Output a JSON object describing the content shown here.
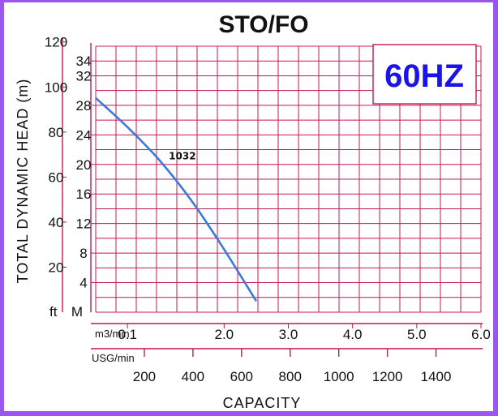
{
  "chart_data": {
    "type": "line",
    "title": "STO/FO",
    "badge": "60HZ",
    "ylabel": "TOTAL DYNAMIC HEAD (m)",
    "xlabel": "CAPACITY",
    "y_ft_unit": "ft",
    "y_m_unit": "M",
    "y_ft_ticks": [
      "120",
      "100",
      "80",
      "60",
      "40",
      "20"
    ],
    "y_m_ticks": [
      "34",
      "32",
      "28",
      "24",
      "20",
      "16",
      "12",
      "8",
      "4"
    ],
    "x_m3_unit": "m3/min",
    "x_m3_ticks": [
      "0.1",
      "2.0",
      "3.0",
      "4.0",
      "5.0",
      "6.0"
    ],
    "x_usg_unit": "USG/min",
    "x_usg_ticks": [
      "200",
      "400",
      "600",
      "800",
      "1000",
      "1200",
      "1400"
    ],
    "ylim_m": [
      0,
      36
    ],
    "xlim_m3": [
      0,
      6
    ],
    "series": [
      {
        "name": "1032",
        "x_m3min": [
          0.0,
          0.5,
          1.0,
          1.5,
          2.0,
          2.5
        ],
        "y_m": [
          29.0,
          25.0,
          20.5,
          15.0,
          8.5,
          1.5
        ]
      }
    ]
  },
  "colors": {
    "frame": "#9b55f0",
    "grid": "#c41852",
    "curve": "#3a7bd8",
    "badge_text": "#1a14e6"
  }
}
